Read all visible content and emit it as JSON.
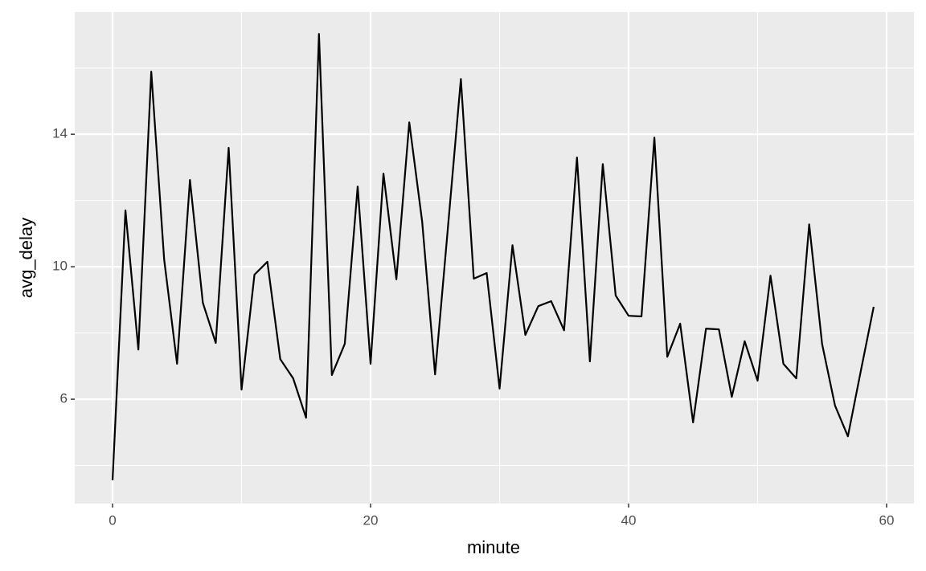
{
  "chart_data": {
    "type": "line",
    "x_label": "minute",
    "y_label": "avg_delay",
    "x": [
      0,
      1,
      2,
      3,
      4,
      5,
      6,
      7,
      8,
      9,
      10,
      11,
      12,
      13,
      14,
      15,
      16,
      17,
      18,
      19,
      20,
      21,
      22,
      23,
      24,
      25,
      26,
      27,
      28,
      29,
      30,
      31,
      32,
      33,
      34,
      35,
      36,
      37,
      38,
      39,
      40,
      41,
      42,
      43,
      44,
      45,
      46,
      47,
      48,
      49,
      50,
      51,
      52,
      53,
      54,
      55,
      56,
      57,
      58,
      59
    ],
    "series": [
      {
        "color": "#000000",
        "values": [
          3.55,
          11.7,
          7.5,
          15.89,
          10.22,
          7.07,
          12.62,
          8.91,
          7.7,
          13.59,
          6.29,
          9.76,
          10.15,
          7.21,
          6.63,
          5.44,
          17.03,
          6.73,
          7.67,
          12.42,
          7.07,
          12.81,
          9.62,
          14.36,
          11.36,
          6.75,
          11.2,
          15.67,
          9.64,
          9.81,
          6.32,
          10.65,
          7.94,
          8.81,
          8.96,
          8.08,
          13.3,
          7.14,
          13.1,
          9.13,
          8.52,
          8.5,
          13.9,
          7.28,
          8.28,
          5.3,
          8.13,
          8.11,
          6.07,
          7.75,
          6.56,
          9.73,
          7.07,
          6.63,
          11.28,
          7.67,
          5.81,
          4.88,
          6.85,
          8.79
        ]
      }
    ],
    "xlim": [
      -2.93,
      62.12
    ],
    "ylim": [
      2.85,
      17.69
    ],
    "xticks": [
      0,
      20,
      40,
      60
    ],
    "yticks": [
      6,
      10,
      14
    ],
    "grid": true
  }
}
